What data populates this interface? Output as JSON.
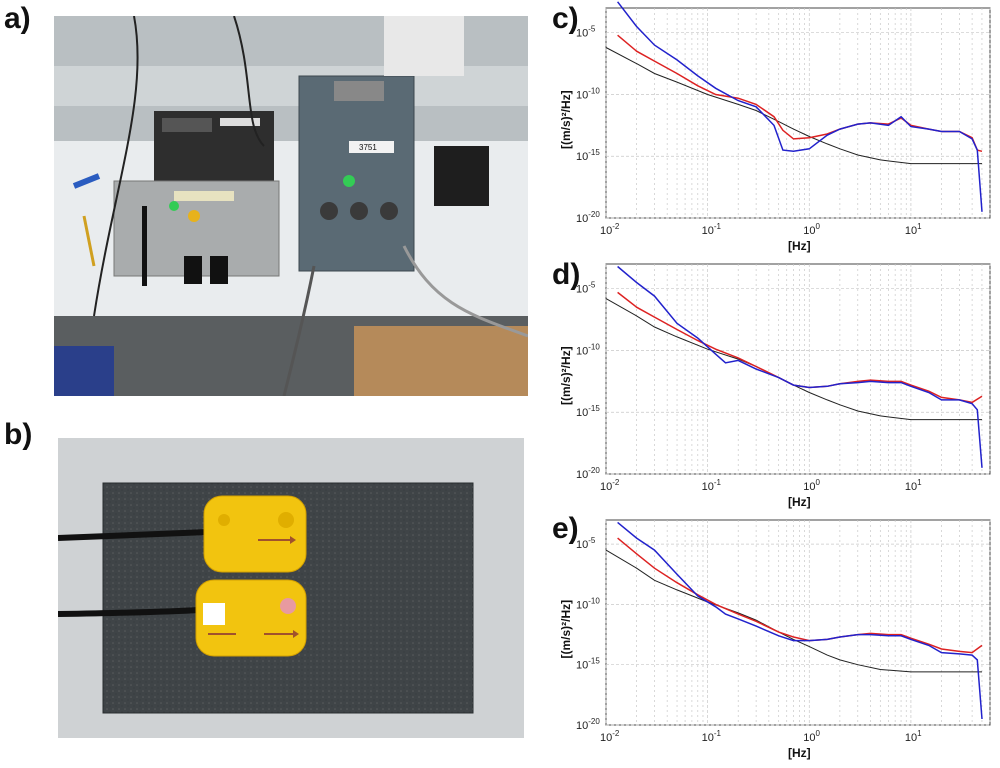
{
  "figure": {
    "panels": {
      "a": "a)",
      "b": "b)",
      "c": "c)",
      "d": "d)",
      "e": "e)"
    },
    "photo_a": {
      "label_device": "3751"
    }
  },
  "colors": {
    "blue_series": "#2222cc",
    "red_series": "#dd2222",
    "black_series": "#222222",
    "grid": "#c8c8c8"
  },
  "chart_data": [
    {
      "panel": "c)",
      "type": "line",
      "xlabel": "[Hz]",
      "ylabel": "[(m/s)²/Hz]",
      "xscale": "log",
      "yscale": "log",
      "xlim": [
        0.01,
        60
      ],
      "ylim": [
        1e-20,
        0.001
      ],
      "xticks": [
        "10^-2",
        "10^-1",
        "10^0",
        "10^1"
      ],
      "yticks": [
        "10^-20",
        "10^-15",
        "10^-10",
        "10^-5"
      ],
      "grid": true,
      "series": [
        {
          "color": "blue",
          "x": [
            0.013,
            0.02,
            0.03,
            0.05,
            0.08,
            0.12,
            0.2,
            0.3,
            0.45,
            0.55,
            0.7,
            1.0,
            1.5,
            2,
            3,
            4,
            6,
            8,
            10,
            15,
            20,
            30,
            40,
            45,
            50
          ],
          "y": [
            -2.5,
            -4.5,
            -6,
            -7.2,
            -8.5,
            -9.5,
            -10.5,
            -11,
            -12.5,
            -14.5,
            -14.6,
            -14.4,
            -13.3,
            -12.8,
            -12.4,
            -12.3,
            -12.5,
            -11.8,
            -12.6,
            -12.8,
            -13,
            -13,
            -13.6,
            -14.5,
            -19.5
          ]
        },
        {
          "color": "red",
          "x": [
            0.013,
            0.02,
            0.03,
            0.05,
            0.08,
            0.12,
            0.2,
            0.3,
            0.45,
            0.55,
            0.7,
            1.0,
            1.5,
            2,
            3,
            4,
            6,
            8,
            10,
            15,
            20,
            30,
            40,
            45,
            50
          ],
          "y": [
            -5.2,
            -6.5,
            -7.3,
            -8.3,
            -9.3,
            -10,
            -10.3,
            -10.8,
            -11.8,
            -12.9,
            -13.6,
            -13.5,
            -13.2,
            -12.8,
            -12.4,
            -12.3,
            -12.4,
            -11.9,
            -12.5,
            -12.8,
            -13,
            -13,
            -13.5,
            -14.5,
            -14.6
          ]
        },
        {
          "color": "black",
          "x": [
            0.01,
            0.02,
            0.03,
            0.05,
            0.1,
            0.2,
            0.3,
            0.5,
            0.7,
            1,
            1.5,
            2,
            3,
            5,
            10,
            20,
            30,
            50
          ],
          "y": [
            -6.2,
            -7.5,
            -8.3,
            -9,
            -10,
            -10.8,
            -11.3,
            -12.2,
            -12.8,
            -13.4,
            -14,
            -14.4,
            -14.9,
            -15.3,
            -15.6,
            -15.6,
            -15.6,
            -15.6
          ]
        }
      ]
    },
    {
      "panel": "d)",
      "type": "line",
      "xlabel": "[Hz]",
      "ylabel": "[(m/s)²/Hz]",
      "xscale": "log",
      "yscale": "log",
      "xlim": [
        0.01,
        60
      ],
      "ylim": [
        1e-20,
        0.001
      ],
      "xticks": [
        "10^-2",
        "10^-1",
        "10^0",
        "10^1"
      ],
      "yticks": [
        "10^-20",
        "10^-15",
        "10^-10",
        "10^-5"
      ],
      "grid": true,
      "series": [
        {
          "color": "blue",
          "x": [
            0.013,
            0.02,
            0.03,
            0.05,
            0.08,
            0.12,
            0.15,
            0.2,
            0.3,
            0.5,
            0.7,
            1,
            1.5,
            2,
            3,
            4,
            6,
            8,
            10,
            15,
            20,
            30,
            40,
            45,
            50
          ],
          "y": [
            -3.2,
            -4.5,
            -5.6,
            -7.8,
            -9,
            -10.3,
            -11,
            -10.8,
            -11.5,
            -12.2,
            -12.8,
            -13,
            -12.9,
            -12.7,
            -12.6,
            -12.5,
            -12.6,
            -12.6,
            -12.9,
            -13.4,
            -14,
            -14,
            -14.3,
            -14.8,
            -19.5
          ]
        },
        {
          "color": "red",
          "x": [
            0.013,
            0.02,
            0.03,
            0.05,
            0.08,
            0.12,
            0.2,
            0.3,
            0.5,
            0.7,
            1,
            1.5,
            2,
            3,
            4,
            6,
            8,
            10,
            15,
            20,
            30,
            40,
            50
          ],
          "y": [
            -5.3,
            -6.5,
            -7.3,
            -8.3,
            -9.2,
            -9.9,
            -10.6,
            -11.3,
            -12.2,
            -12.8,
            -13,
            -12.9,
            -12.7,
            -12.5,
            -12.4,
            -12.5,
            -12.5,
            -12.8,
            -13.3,
            -13.8,
            -14,
            -14.2,
            -13.7
          ]
        },
        {
          "color": "black",
          "x": [
            0.01,
            0.02,
            0.03,
            0.05,
            0.1,
            0.2,
            0.3,
            0.5,
            0.7,
            1,
            1.5,
            2,
            3,
            5,
            10,
            20,
            30,
            50
          ],
          "y": [
            -5.8,
            -7.2,
            -8.1,
            -8.9,
            -9.9,
            -10.7,
            -11.3,
            -12.2,
            -12.8,
            -13.4,
            -14,
            -14.4,
            -14.9,
            -15.3,
            -15.6,
            -15.6,
            -15.6,
            -15.6
          ]
        }
      ]
    },
    {
      "panel": "e)",
      "type": "line",
      "xlabel": "[Hz]",
      "ylabel": "[(m/s)²/Hz]",
      "xscale": "log",
      "yscale": "log",
      "xlim": [
        0.01,
        60
      ],
      "ylim": [
        1e-20,
        0.001
      ],
      "xticks": [
        "10^-2",
        "10^-1",
        "10^0",
        "10^1"
      ],
      "yticks": [
        "10^-20",
        "10^-15",
        "10^-10",
        "10^-5"
      ],
      "grid": true,
      "series": [
        {
          "color": "blue",
          "x": [
            0.013,
            0.02,
            0.03,
            0.05,
            0.08,
            0.12,
            0.15,
            0.2,
            0.3,
            0.5,
            0.7,
            1,
            1.5,
            2,
            3,
            4,
            6,
            8,
            10,
            15,
            20,
            30,
            40,
            45,
            50
          ],
          "y": [
            -3.2,
            -4.5,
            -5.5,
            -7.5,
            -9.3,
            -10.2,
            -10.8,
            -11.2,
            -11.8,
            -12.6,
            -13,
            -13,
            -12.9,
            -12.7,
            -12.5,
            -12.5,
            -12.6,
            -12.6,
            -12.9,
            -13.4,
            -14,
            -14.1,
            -14.2,
            -14.6,
            -19.5
          ]
        },
        {
          "color": "red",
          "x": [
            0.013,
            0.02,
            0.03,
            0.05,
            0.08,
            0.12,
            0.2,
            0.3,
            0.5,
            0.7,
            1,
            1.5,
            2,
            3,
            4,
            6,
            8,
            10,
            15,
            20,
            30,
            40,
            50
          ],
          "y": [
            -4.5,
            -5.8,
            -7,
            -8.2,
            -9.2,
            -10,
            -10.8,
            -11.4,
            -12.3,
            -12.7,
            -13,
            -12.9,
            -12.7,
            -12.5,
            -12.4,
            -12.5,
            -12.5,
            -12.8,
            -13.3,
            -13.7,
            -13.9,
            -14,
            -13.4
          ]
        },
        {
          "color": "black",
          "x": [
            0.01,
            0.02,
            0.03,
            0.05,
            0.1,
            0.2,
            0.3,
            0.5,
            0.7,
            1,
            1.5,
            2,
            3,
            5,
            10,
            20,
            30,
            50
          ],
          "y": [
            -5.5,
            -7,
            -8,
            -8.8,
            -9.8,
            -10.7,
            -11.3,
            -12.3,
            -12.9,
            -13.5,
            -14.2,
            -14.6,
            -15,
            -15.4,
            -15.6,
            -15.6,
            -15.6,
            -15.6
          ]
        }
      ]
    }
  ]
}
